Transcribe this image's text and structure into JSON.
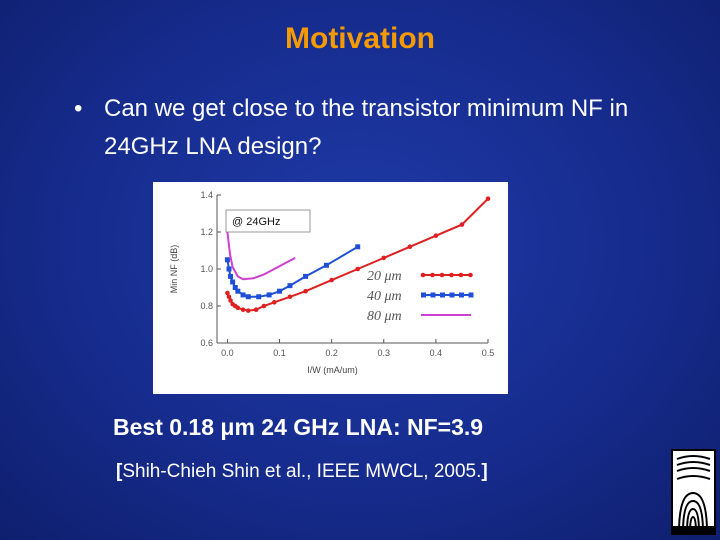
{
  "slide": {
    "title": "Motivation",
    "bullet_symbol": "•",
    "bullet_text": "Can we get close to the transistor minimum NF in 24GHz LNA design?",
    "result_text": "Best 0.18 μm 24 GHz LNA: NF=3.9",
    "reference": {
      "open": "[",
      "text": "Shih-Chieh Shin et al., IEEE MWCL, 2005.",
      "close": "]"
    }
  },
  "chart_data": {
    "type": "line",
    "annotation": "@ 24GHz",
    "xlabel": "I/W (mA/um)",
    "ylabel": "Min NF (dB)",
    "xlim": [
      -0.02,
      0.5
    ],
    "ylim": [
      0.6,
      1.4
    ],
    "xticks": [
      {
        "value": 0.0,
        "label": "0.0"
      },
      {
        "value": 0.1,
        "label": "0.1"
      },
      {
        "value": 0.2,
        "label": "0.2"
      },
      {
        "value": 0.3,
        "label": "0.3"
      },
      {
        "value": 0.4,
        "label": "0.4"
      },
      {
        "value": 0.5,
        "label": "0.5"
      }
    ],
    "yticks": [
      {
        "value": 0.6,
        "label": "0.6"
      },
      {
        "value": 0.8,
        "label": "0.8"
      },
      {
        "value": 1.0,
        "label": "1.0"
      },
      {
        "value": 1.2,
        "label": "1.2"
      },
      {
        "value": 1.4,
        "label": "1.4"
      }
    ],
    "grid": false,
    "legend_position": "right",
    "series": [
      {
        "name": "20 μm",
        "color": "#e02020",
        "marker": "circle",
        "x": [
          0.0,
          0.003,
          0.006,
          0.01,
          0.015,
          0.02,
          0.03,
          0.04,
          0.055,
          0.07,
          0.09,
          0.12,
          0.15,
          0.2,
          0.25,
          0.3,
          0.35,
          0.4,
          0.45,
          0.5
        ],
        "y": [
          0.87,
          0.85,
          0.83,
          0.81,
          0.8,
          0.79,
          0.78,
          0.775,
          0.78,
          0.8,
          0.82,
          0.85,
          0.88,
          0.94,
          1.0,
          1.06,
          1.12,
          1.18,
          1.24,
          1.38
        ]
      },
      {
        "name": "40 μm",
        "color": "#1f4fd8",
        "marker": "square",
        "x": [
          0.0,
          0.003,
          0.006,
          0.01,
          0.015,
          0.02,
          0.03,
          0.04,
          0.06,
          0.08,
          0.1,
          0.12,
          0.15,
          0.19,
          0.25
        ],
        "y": [
          1.05,
          1.0,
          0.96,
          0.93,
          0.9,
          0.88,
          0.86,
          0.85,
          0.85,
          0.86,
          0.88,
          0.91,
          0.96,
          1.02,
          1.12
        ]
      },
      {
        "name": "80 μm",
        "color": "#d040d0",
        "marker": "none",
        "x": [
          0.0,
          0.005,
          0.01,
          0.02,
          0.03,
          0.05,
          0.07,
          0.09,
          0.11,
          0.13
        ],
        "y": [
          1.2,
          1.08,
          1.01,
          0.96,
          0.945,
          0.95,
          0.97,
          1.0,
          1.03,
          1.06
        ]
      }
    ]
  },
  "colors": {
    "background": "#162c8e",
    "title": "#f59a00",
    "text": "#ffffff",
    "figure_background": "#ffffff"
  },
  "logo": {
    "icon": "university-logo-icon"
  }
}
